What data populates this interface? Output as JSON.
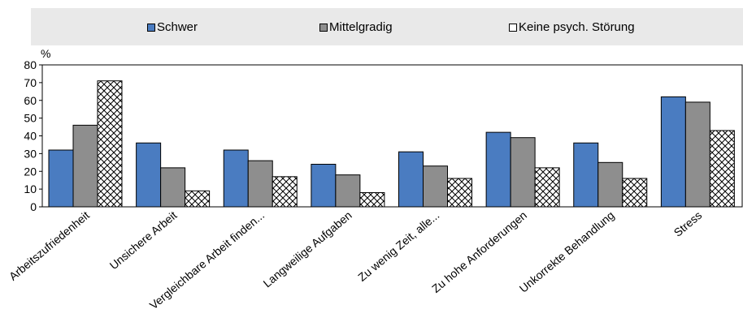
{
  "legend": [
    {
      "label": "Schwer",
      "color": "#4a7cc1"
    },
    {
      "label": "Mittelgradig",
      "color": "#8e8e8e"
    },
    {
      "label": "Keine psych. Störung",
      "color": "#ffffff",
      "pattern": "crosshatch"
    }
  ],
  "chart_data": {
    "type": "bar",
    "ylabel": "%",
    "ylim": [
      0,
      80
    ],
    "yticks": [
      0,
      10,
      20,
      30,
      40,
      50,
      60,
      70,
      80
    ],
    "categories": [
      "Arbeitszufriedenheit",
      "Unsichere Arbeit",
      "Vergleichbare Arbeit finden...",
      "Langweilige Aufgaben",
      "Zu wenig Zeit, alle...",
      "Zu hohe Anforderungen",
      "Unkorrekte Behandlung",
      "Stress"
    ],
    "series": [
      {
        "name": "Schwer",
        "values": [
          32,
          36,
          32,
          24,
          31,
          42,
          36,
          62
        ]
      },
      {
        "name": "Mittelgradig",
        "values": [
          46,
          22,
          26,
          18,
          23,
          39,
          25,
          59
        ]
      },
      {
        "name": "Keine psych. Störung",
        "values": [
          71,
          9,
          17,
          8,
          16,
          22,
          16,
          43
        ]
      }
    ],
    "grid": false,
    "legend_position": "top"
  }
}
